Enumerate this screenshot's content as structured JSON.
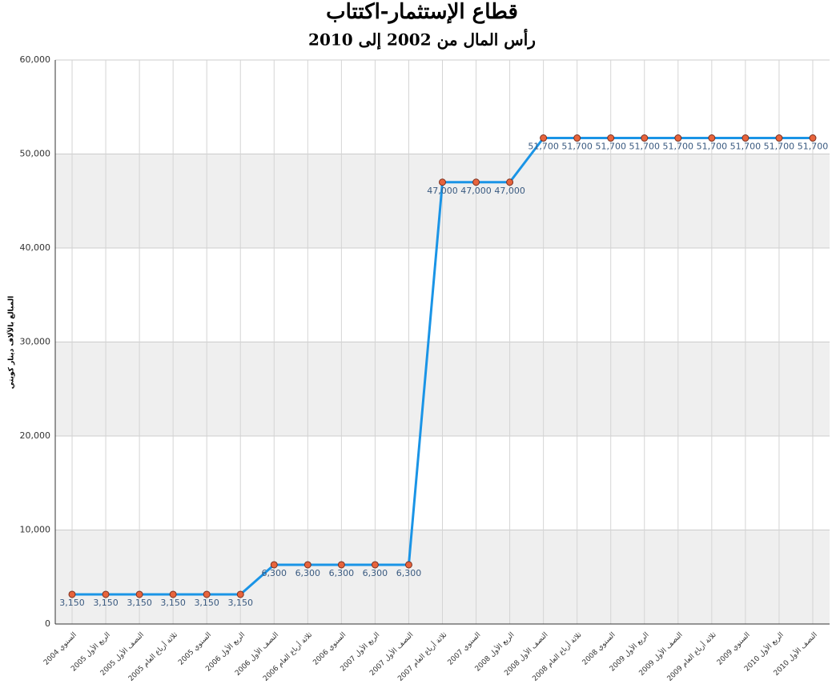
{
  "chart_data": {
    "type": "line",
    "title": "قطاع الإستثمار-اكتتاب",
    "subtitle": "رأس المال من 2002 إلى 2010",
    "y_label": "المبالغ بالآلاف دينار كويتي",
    "categories": [
      "السنوي 2004",
      "الربع الأول 2005",
      "النصف الأول 2005",
      "ثلاثة أرباع العام 2005",
      "السنوي 2005",
      "الربع الأول 2006",
      "النصف الأول 2006",
      "ثلاثة أرباع العام 2006",
      "السنوي 2006",
      "الربع الأول 2007",
      "النصف الأول 2007",
      "ثلاثة أرباع العام 2007",
      "السنوي 2007",
      "الربع الأول 2008",
      "النصف الأول 2008",
      "ثلاثة أرباع العام 2008",
      "السنوي 2008",
      "الربع الأول 2009",
      "النصف الأول 2009",
      "ثلاثة أرباع العام 2009",
      "السنوي 2009",
      "الربع الأول 2010",
      "النصف الأول 2010"
    ],
    "values": [
      3150,
      3150,
      3150,
      3150,
      3150,
      3150,
      6300,
      6300,
      6300,
      6300,
      6300,
      47000,
      47000,
      47000,
      51700,
      51700,
      51700,
      51700,
      51700,
      51700,
      51700,
      51700,
      51700
    ],
    "value_labels": [
      "3,150",
      "3,150",
      "3,150",
      "3,150",
      "3,150",
      "3,150",
      "6,300",
      "6,300",
      "6,300",
      "6,300",
      "6,300",
      "47,000",
      "47,000",
      "47,000",
      "51,700",
      "51,700",
      "51,700",
      "51,700",
      "51,700",
      "51,700",
      "51,700",
      "51,700",
      "51,700"
    ],
    "color": "#1a94e6",
    "marker_color": "#e8643c",
    "ylim": [
      0,
      60000
    ],
    "yticks": [
      0,
      {
        "value": 10000,
        "label": "10,000"
      },
      {
        "value": 20000,
        "label": "20,000"
      },
      {
        "value": 30000,
        "label": "30,000"
      },
      {
        "value": 40000,
        "label": "40,000"
      },
      {
        "value": 50000,
        "label": "50,000"
      },
      {
        "value": 60000,
        "label": "60,000"
      }
    ],
    "grid": true
  }
}
